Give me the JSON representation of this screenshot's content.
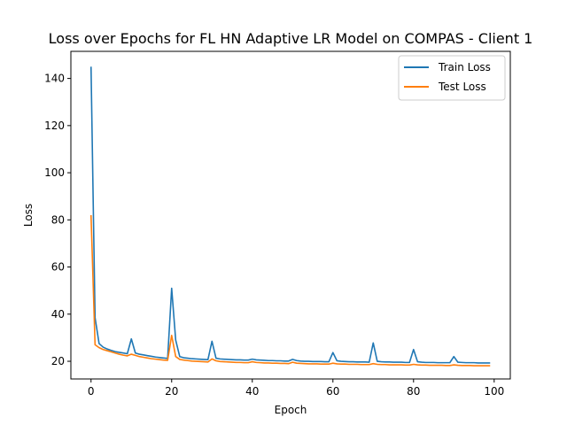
{
  "chart_data": {
    "type": "line",
    "title": "Loss over Epochs for FL HN Adaptive LR Model on COMPAS - Client 1",
    "xlabel": "Epoch",
    "ylabel": "Loss",
    "xlim": [
      -5,
      104
    ],
    "ylim": [
      12.5,
      151.5
    ],
    "xticks": [
      0,
      20,
      40,
      60,
      80,
      100
    ],
    "yticks": [
      20,
      40,
      60,
      80,
      100,
      120,
      140
    ],
    "grid": false,
    "legend_position": "top-right",
    "series": [
      {
        "name": "Train Loss",
        "color": "#1f77b4",
        "values": [
          145.0,
          38.5,
          27.5,
          26.0,
          25.2,
          24.6,
          24.1,
          23.8,
          23.5,
          23.2,
          29.5,
          23.5,
          23.0,
          22.7,
          22.4,
          22.1,
          21.8,
          21.6,
          21.4,
          21.2,
          51.0,
          29.0,
          22.0,
          21.5,
          21.3,
          21.1,
          21.0,
          20.9,
          20.8,
          20.7,
          28.5,
          21.3,
          21.0,
          20.9,
          20.8,
          20.7,
          20.6,
          20.6,
          20.5,
          20.5,
          20.9,
          20.6,
          20.5,
          20.4,
          20.3,
          20.3,
          20.2,
          20.2,
          20.1,
          20.1,
          20.8,
          20.3,
          20.1,
          20.0,
          20.0,
          19.9,
          19.9,
          19.9,
          19.8,
          19.8,
          23.7,
          20.2,
          20.0,
          19.9,
          19.8,
          19.8,
          19.7,
          19.7,
          19.7,
          19.6,
          27.8,
          20.0,
          19.8,
          19.7,
          19.7,
          19.6,
          19.6,
          19.6,
          19.5,
          19.5,
          25.0,
          19.8,
          19.6,
          19.5,
          19.5,
          19.5,
          19.4,
          19.4,
          19.4,
          19.4,
          22.0,
          19.6,
          19.5,
          19.4,
          19.4,
          19.4,
          19.3,
          19.3,
          19.3,
          19.3
        ]
      },
      {
        "name": "Test Loss",
        "color": "#ff7f0e",
        "values": [
          82.0,
          27.0,
          25.8,
          25.0,
          24.5,
          24.0,
          23.5,
          23.0,
          22.6,
          22.3,
          23.0,
          22.5,
          22.0,
          21.7,
          21.4,
          21.1,
          20.9,
          20.7,
          20.5,
          20.4,
          31.0,
          22.0,
          20.8,
          20.5,
          20.3,
          20.1,
          20.0,
          19.9,
          19.8,
          19.7,
          21.0,
          20.2,
          19.9,
          19.8,
          19.7,
          19.6,
          19.5,
          19.5,
          19.4,
          19.4,
          19.8,
          19.5,
          19.4,
          19.3,
          19.3,
          19.2,
          19.2,
          19.1,
          19.1,
          19.0,
          19.6,
          19.2,
          19.1,
          19.0,
          18.9,
          18.9,
          18.9,
          18.8,
          18.8,
          18.8,
          19.2,
          18.9,
          18.8,
          18.8,
          18.7,
          18.7,
          18.7,
          18.6,
          18.6,
          18.6,
          19.0,
          18.7,
          18.6,
          18.6,
          18.5,
          18.5,
          18.5,
          18.5,
          18.4,
          18.4,
          18.7,
          18.5,
          18.4,
          18.4,
          18.3,
          18.3,
          18.3,
          18.3,
          18.2,
          18.2,
          18.5,
          18.3,
          18.2,
          18.2,
          18.2,
          18.1,
          18.1,
          18.1,
          18.1,
          18.1
        ]
      }
    ]
  }
}
